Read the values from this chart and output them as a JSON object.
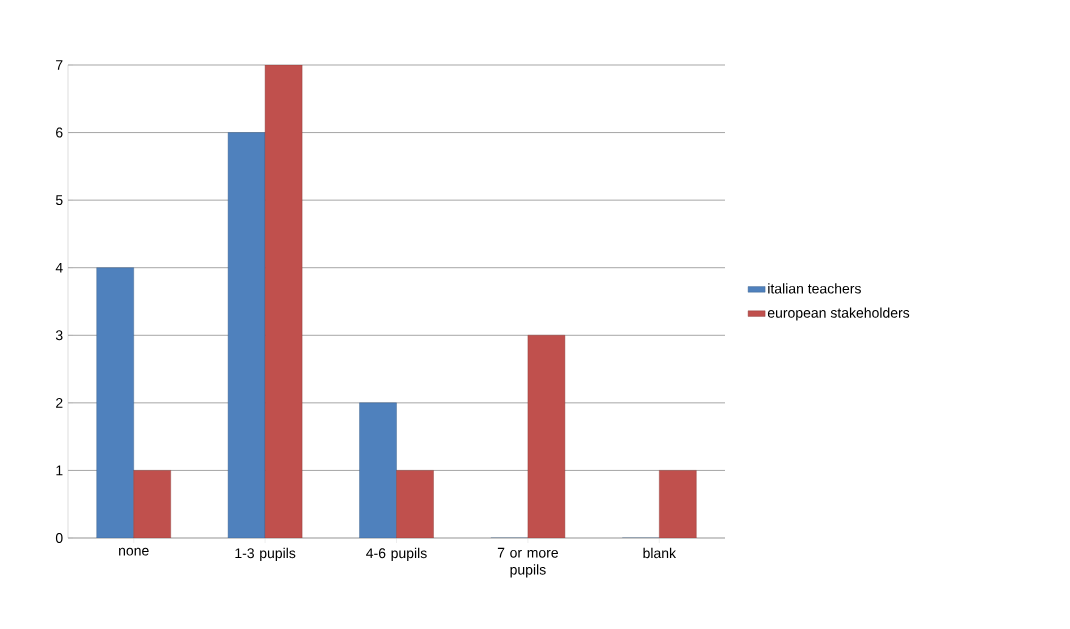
{
  "chart_data": {
    "type": "bar",
    "categories": [
      "none",
      "1-3 pupils",
      "4-6 pupils",
      "7 or more pupils",
      "blank"
    ],
    "series": [
      {
        "name": "italian teachers",
        "color": "#4f81bd",
        "values": [
          4,
          6,
          2,
          0,
          0
        ]
      },
      {
        "name": "european stakeholders",
        "color": "#c0504d",
        "values": [
          1,
          7,
          1,
          3,
          1
        ]
      }
    ],
    "ylim": [
      0,
      7
    ],
    "yticks": [
      0,
      1,
      2,
      3,
      4,
      5,
      6,
      7
    ],
    "grid": "y",
    "legend": "right"
  }
}
